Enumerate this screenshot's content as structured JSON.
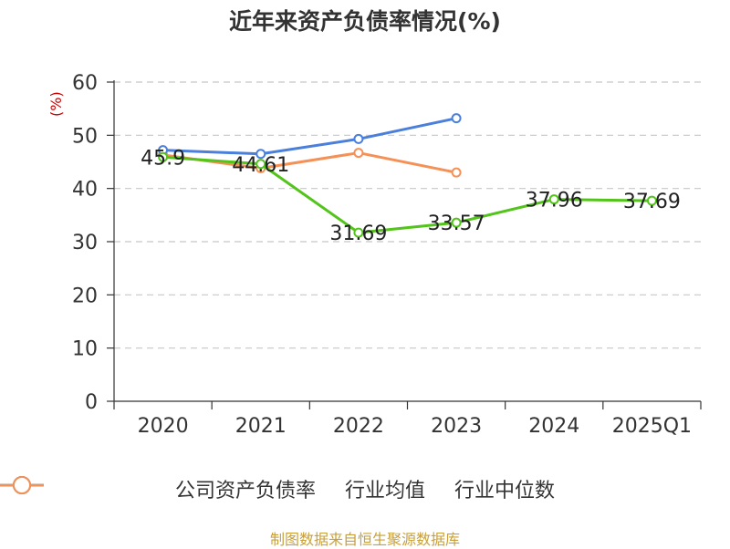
{
  "chart_data": {
    "type": "line",
    "title": "近年来资产负债率情况(%)",
    "y_unit": "(%)",
    "categories": [
      "2020",
      "2021",
      "2022",
      "2023",
      "2024",
      "2025Q1"
    ],
    "ylim": [
      0,
      60
    ],
    "y_ticks": [
      0,
      10,
      20,
      30,
      40,
      50,
      60
    ],
    "grid": true,
    "legend_position": "bottom",
    "series": [
      {
        "name": "公司资产负债率",
        "color": "#52c41a",
        "values": [
          45.9,
          44.61,
          31.69,
          33.57,
          37.96,
          37.69
        ],
        "labels": [
          "45.9",
          "44.61",
          "31.69",
          "33.57",
          "37.96",
          "37.69"
        ]
      },
      {
        "name": "行业均值",
        "color": "#4a7fdc",
        "values": [
          47.2,
          46.5,
          49.3,
          53.2,
          null,
          null
        ]
      },
      {
        "name": "行业中位数",
        "color": "#f59056",
        "values": [
          46.3,
          43.8,
          46.7,
          43.0,
          null,
          null
        ]
      }
    ]
  },
  "footer": {
    "source_note": "制图数据来自恒生聚源数据库"
  }
}
